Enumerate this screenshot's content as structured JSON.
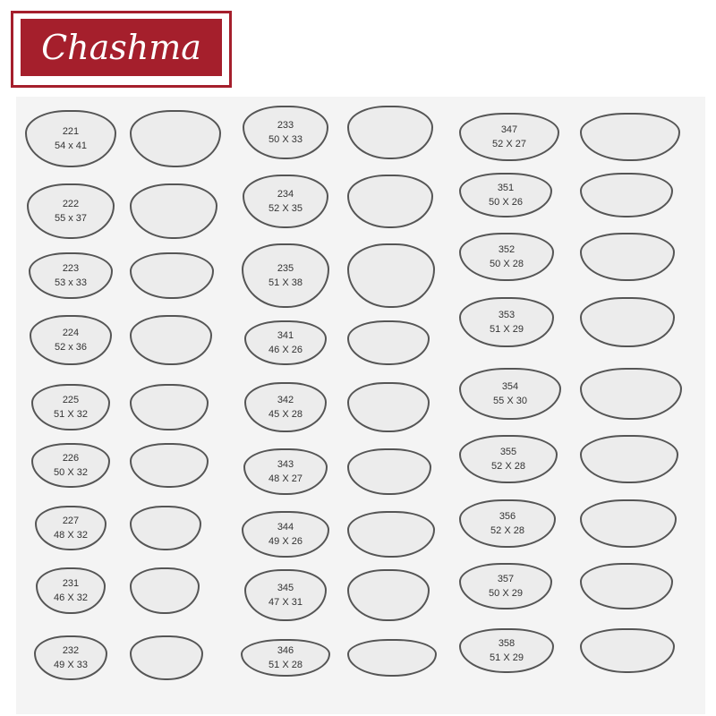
{
  "brand": {
    "logo_text": "Chashma",
    "color": "#a51f2c"
  },
  "columns": [
    {
      "items": [
        {
          "code": "221",
          "size": "54 x 41"
        },
        {
          "code": "222",
          "size": "55 x 37"
        },
        {
          "code": "223",
          "size": "53 x 33"
        },
        {
          "code": "224",
          "size": "52 x 36"
        },
        {
          "code": "225",
          "size": "51 X 32"
        },
        {
          "code": "226",
          "size": "50 X 32"
        },
        {
          "code": "227",
          "size": "48 X 32"
        },
        {
          "code": "231",
          "size": "46 X 32"
        },
        {
          "code": "232",
          "size": "49 X 33"
        }
      ]
    },
    {
      "items": [
        {
          "code": "233",
          "size": "50 X 33"
        },
        {
          "code": "234",
          "size": "52 X 35"
        },
        {
          "code": "235",
          "size": "51 X 38"
        },
        {
          "code": "341",
          "size": "46 X 26"
        },
        {
          "code": "342",
          "size": "45 X 28"
        },
        {
          "code": "343",
          "size": "48 X 27"
        },
        {
          "code": "344",
          "size": "49 X 26"
        },
        {
          "code": "345",
          "size": "47 X 31"
        },
        {
          "code": "346",
          "size": "51 X 28"
        }
      ]
    },
    {
      "items": [
        {
          "code": "347",
          "size": "52 X 27"
        },
        {
          "code": "351",
          "size": "50 X 26"
        },
        {
          "code": "352",
          "size": "50 X 28"
        },
        {
          "code": "353",
          "size": "51 X 29"
        },
        {
          "code": "354",
          "size": "55 X 30"
        },
        {
          "code": "355",
          "size": "52 X 28"
        },
        {
          "code": "356",
          "size": "52 X 28"
        },
        {
          "code": "357",
          "size": "50 X 29"
        },
        {
          "code": "358",
          "size": "51 X 29"
        }
      ]
    }
  ]
}
